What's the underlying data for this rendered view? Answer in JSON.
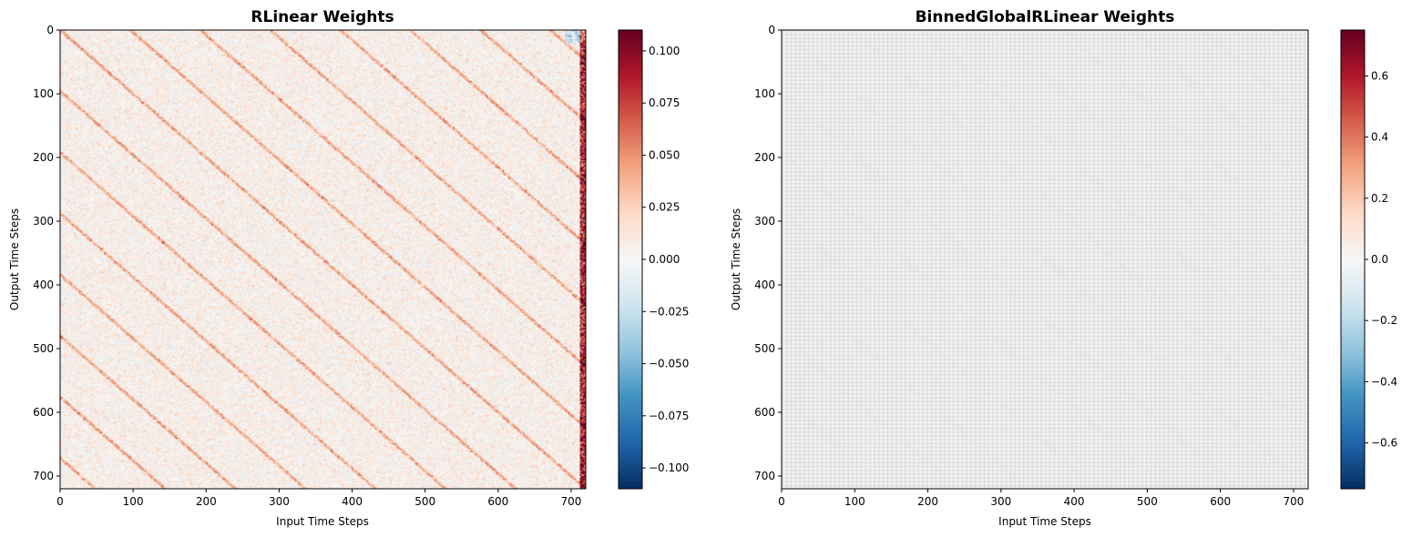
{
  "chart_data": [
    {
      "type": "heatmap",
      "title": "RLinear Weights",
      "xlabel": "Input Time Steps",
      "ylabel": "Output Time Steps",
      "x_ticks": [
        0,
        100,
        200,
        300,
        400,
        500,
        600,
        700
      ],
      "y_ticks": [
        0,
        100,
        200,
        300,
        400,
        500,
        600,
        700
      ],
      "xlim": [
        0,
        720
      ],
      "ylim": [
        720,
        0
      ],
      "colormap": "RdBu_r",
      "color_range": [
        -0.11,
        0.11
      ],
      "colorbar_ticks": [
        0.1,
        0.075,
        0.05,
        0.025,
        0.0,
        -0.025,
        -0.05,
        -0.075,
        -0.1
      ],
      "colorbar_tick_labels": [
        "0.100",
        "0.075",
        "0.050",
        "0.025",
        "0.000",
        "−0.025",
        "−0.050",
        "−0.075",
        "−0.100"
      ],
      "pattern": {
        "background_mean": 0.005,
        "noise": 0.02,
        "diagonal_period": 96,
        "diagonal_value": 0.035,
        "right_edge_value": 0.08
      }
    },
    {
      "type": "heatmap",
      "title": "BinnedGlobalRLinear Weights",
      "xlabel": "Input Time Steps",
      "ylabel": "Output Time Steps",
      "x_ticks": [
        0,
        100,
        200,
        300,
        400,
        500,
        600,
        700
      ],
      "y_ticks": [
        0,
        100,
        200,
        300,
        400,
        500,
        600,
        700
      ],
      "xlim": [
        0,
        720
      ],
      "ylim": [
        720,
        0
      ],
      "colormap": "RdBu_r",
      "color_range": [
        -0.75,
        0.75
      ],
      "colorbar_ticks": [
        0.6,
        0.4,
        0.2,
        0.0,
        -0.2,
        -0.4,
        -0.6
      ],
      "colorbar_tick_labels": [
        "0.6",
        "0.4",
        "0.2",
        "0.0",
        "−0.2",
        "−0.4",
        "−0.6"
      ],
      "pattern": {
        "background_mean": 0.0,
        "grid_period": 3,
        "diagonal_period": 96,
        "diagonal_value": 0.05
      }
    }
  ]
}
